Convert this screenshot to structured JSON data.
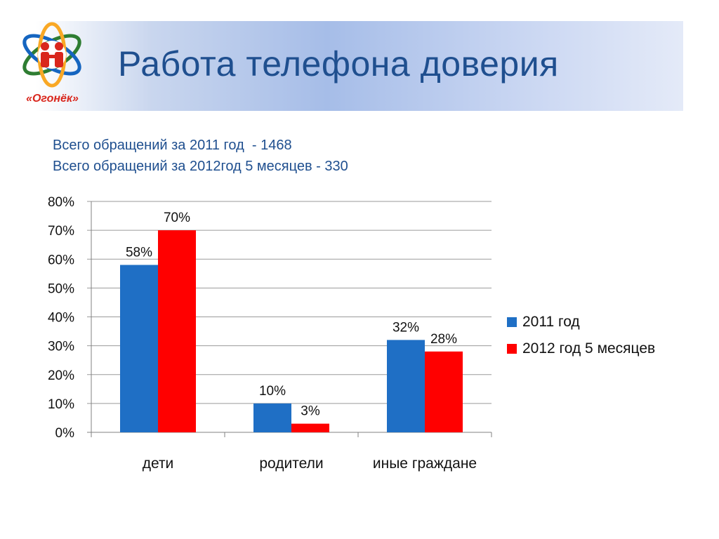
{
  "page": {
    "title": "Работа телефона доверия",
    "logo_text": "«Огонёк»"
  },
  "stats": {
    "line1": "Всего обращений за 2011 год  - 1468",
    "line2": "Всего обращений за 2012год 5 месяцев - 330"
  },
  "colors": {
    "series_2011": "#1f6fc5",
    "series_2012": "#ff0000",
    "title": "#1f4f8f"
  },
  "chart_data": {
    "type": "bar",
    "categories": [
      "дети",
      "родители",
      "иные граждане"
    ],
    "series": [
      {
        "name": "2011 год",
        "values": [
          58,
          10,
          32
        ],
        "labels": [
          "58%",
          "10%",
          "32%"
        ],
        "color": "#1f6fc5"
      },
      {
        "name": "2012 год 5 месяцев",
        "values": [
          70,
          3,
          28
        ],
        "labels": [
          "70%",
          "3%",
          "28%"
        ],
        "color": "#ff0000"
      }
    ],
    "yticks": [
      "0%",
      "10%",
      "20%",
      "30%",
      "40%",
      "50%",
      "60%",
      "70%",
      "80%"
    ],
    "ylim": [
      0,
      80
    ],
    "grid": true,
    "legend_position": "right"
  }
}
